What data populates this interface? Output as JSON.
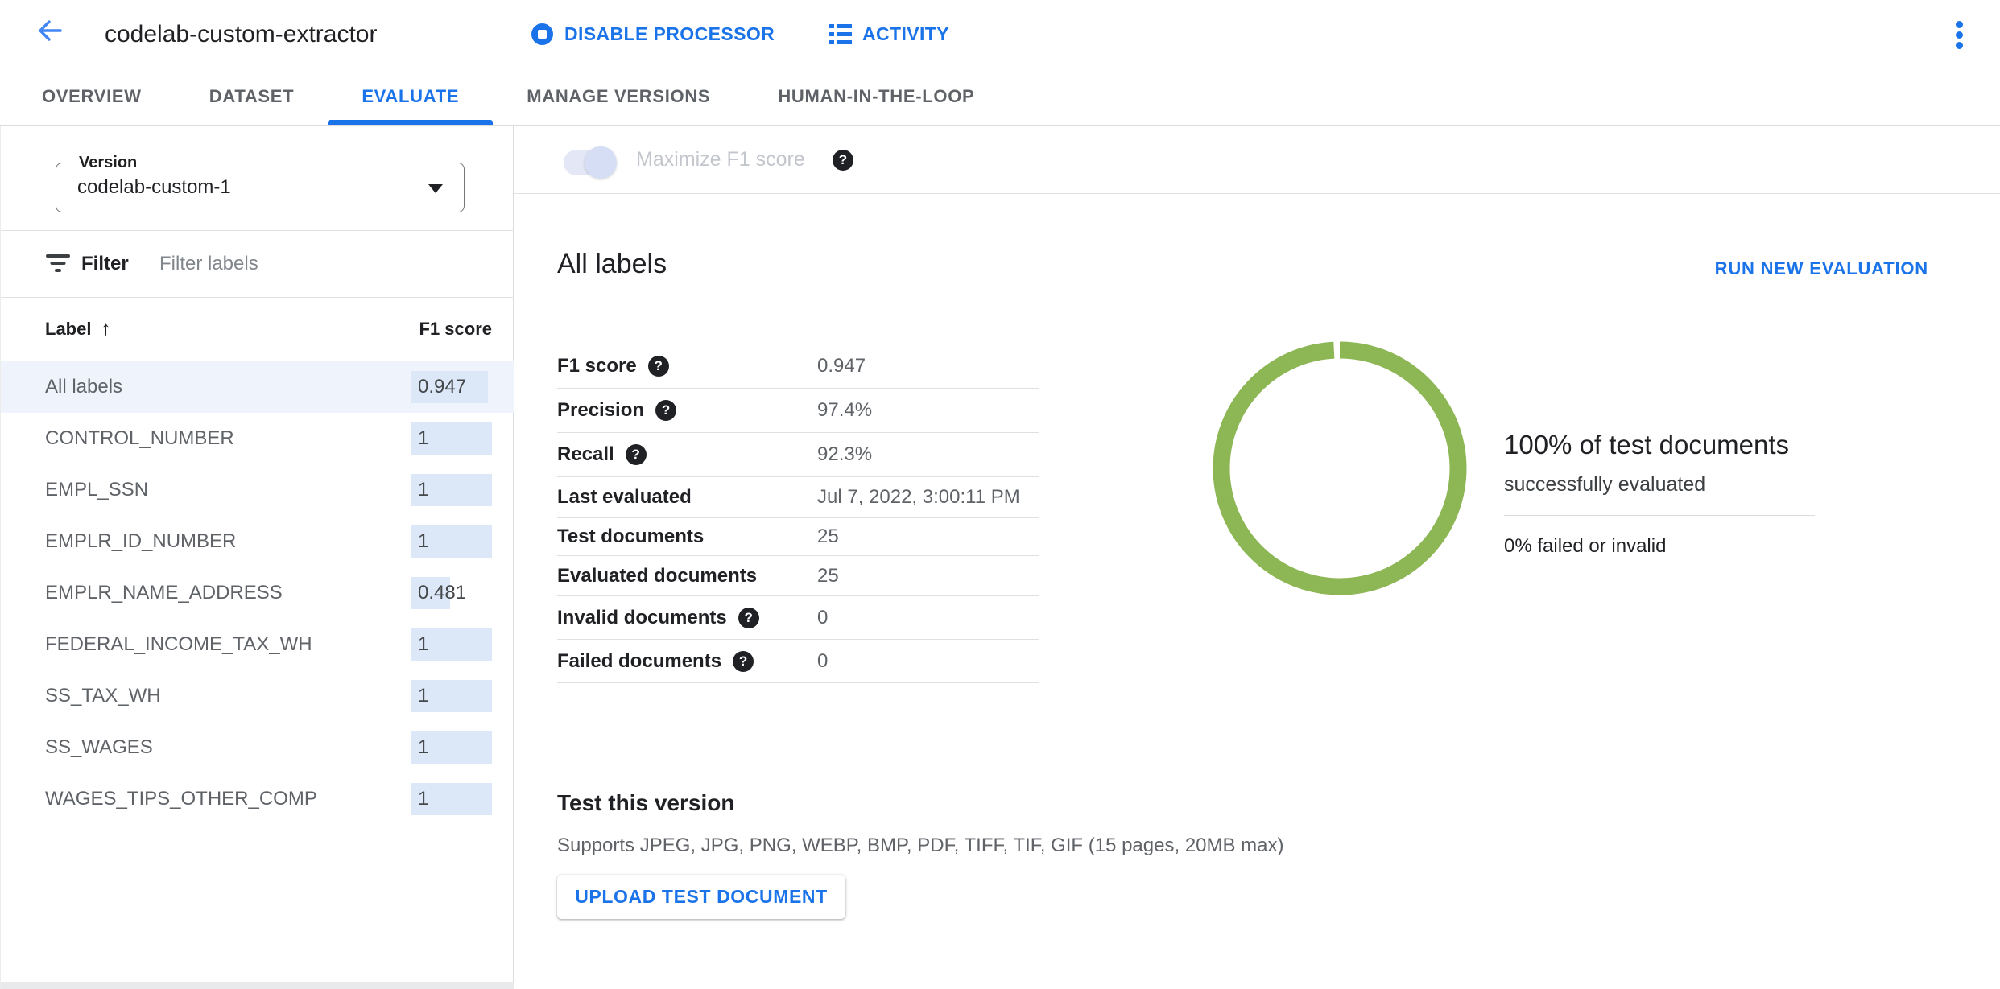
{
  "colors": {
    "accent": "#1a73e8",
    "donut_green": "#8db655",
    "bar_blue": "#dce8f8",
    "selected_row_bg": "#eef3fc"
  },
  "header": {
    "title": "codelab-custom-extractor",
    "disable_processor_label": "DISABLE PROCESSOR",
    "activity_label": "ACTIVITY"
  },
  "tabs": [
    {
      "label": "OVERVIEW",
      "active": false
    },
    {
      "label": "DATASET",
      "active": false
    },
    {
      "label": "EVALUATE",
      "active": true
    },
    {
      "label": "MANAGE VERSIONS",
      "active": false
    },
    {
      "label": "HUMAN-IN-THE-LOOP",
      "active": false
    }
  ],
  "sidebar": {
    "version_label": "Version",
    "version_value": "codelab-custom-1",
    "filter_label": "Filter",
    "filter_placeholder": "Filter labels",
    "table": {
      "label_header": "Label",
      "sort_arrow": "↑",
      "score_header": "F1 score",
      "rows": [
        {
          "label": "All labels",
          "f1": "0.947",
          "selected": true
        },
        {
          "label": "CONTROL_NUMBER",
          "f1": "1",
          "selected": false
        },
        {
          "label": "EMPL_SSN",
          "f1": "1",
          "selected": false
        },
        {
          "label": "EMPLR_ID_NUMBER",
          "f1": "1",
          "selected": false
        },
        {
          "label": "EMPLR_NAME_ADDRESS",
          "f1": "0.481",
          "selected": false
        },
        {
          "label": "FEDERAL_INCOME_TAX_WH",
          "f1": "1",
          "selected": false
        },
        {
          "label": "SS_TAX_WH",
          "f1": "1",
          "selected": false
        },
        {
          "label": "SS_WAGES",
          "f1": "1",
          "selected": false
        },
        {
          "label": "WAGES_TIPS_OTHER_COMP",
          "f1": "1",
          "selected": false
        }
      ]
    }
  },
  "main": {
    "toggle_label": "Maximize F1 score",
    "toggle_state": "on-disabled",
    "section_title": "All labels",
    "run_new_evaluation_label": "RUN NEW EVALUATION",
    "metrics": [
      {
        "label": "F1 score",
        "help": true,
        "value": "0.947"
      },
      {
        "label": "Precision",
        "help": true,
        "value": "97.4%"
      },
      {
        "label": "Recall",
        "help": true,
        "value": "92.3%"
      },
      {
        "label": "Last evaluated",
        "help": false,
        "value": "Jul 7, 2022, 3:00:11 PM"
      },
      {
        "label": "Test documents",
        "help": false,
        "value": "25"
      },
      {
        "label": "Evaluated documents",
        "help": false,
        "value": "25"
      },
      {
        "label": "Invalid documents",
        "help": true,
        "value": "0"
      },
      {
        "label": "Failed documents",
        "help": true,
        "value": "0"
      }
    ],
    "donut": {
      "headline": "100% of test documents",
      "subline": "successfully evaluated",
      "failed_line": "0% failed or invalid"
    },
    "test_section": {
      "title": "Test this version",
      "supports": "Supports JPEG, JPG, PNG, WEBP, BMP, PDF, TIFF, TIF, GIF (15 pages, 20MB max)",
      "upload_button_label": "UPLOAD TEST DOCUMENT"
    }
  },
  "chart_data": [
    {
      "type": "pie",
      "title": "Test document evaluation status",
      "categories": [
        "successfully evaluated",
        "failed or invalid"
      ],
      "values": [
        100,
        0
      ],
      "unit": "%",
      "style": "donut",
      "color": "#8db655"
    },
    {
      "type": "bar",
      "title": "F1 score per label",
      "categories": [
        "All labels",
        "CONTROL_NUMBER",
        "EMPL_SSN",
        "EMPLR_ID_NUMBER",
        "EMPLR_NAME_ADDRESS",
        "FEDERAL_INCOME_TAX_WH",
        "SS_TAX_WH",
        "SS_WAGES",
        "WAGES_TIPS_OTHER_COMP"
      ],
      "values": [
        0.947,
        1,
        1,
        1,
        0.481,
        1,
        1,
        1,
        1
      ],
      "xlim": [
        0,
        1
      ],
      "orientation": "horizontal"
    }
  ]
}
